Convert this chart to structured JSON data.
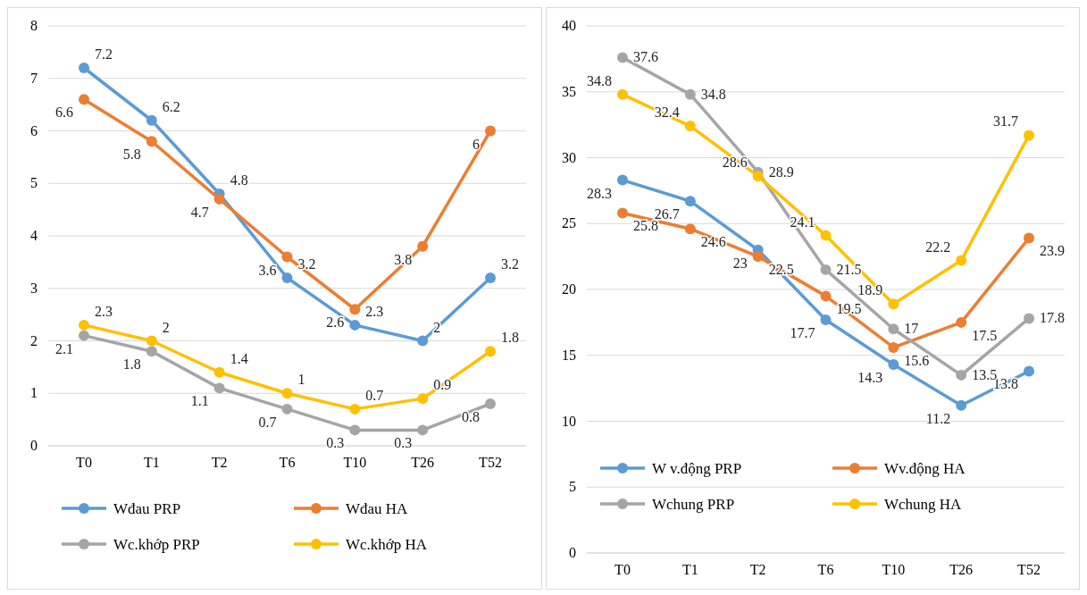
{
  "chart_data": [
    {
      "type": "line",
      "categories": [
        "T0",
        "T1",
        "T2",
        "T6",
        "T10",
        "T26",
        "T52"
      ],
      "ylim": [
        0,
        8
      ],
      "yticks": [
        0,
        1,
        2,
        3,
        4,
        5,
        6,
        7,
        8
      ],
      "grid": "y",
      "legend": "bottom",
      "marker": "circle",
      "data_labels": true,
      "series": [
        {
          "name": "Wđau PRP",
          "color": "#5b9bd5",
          "values": [
            7.2,
            6.2,
            4.8,
            3.2,
            2.3,
            2,
            3.2
          ]
        },
        {
          "name": "Wđau HA",
          "color": "#ed7d31",
          "values": [
            6.6,
            5.8,
            4.7,
            3.6,
            2.6,
            3.8,
            6
          ]
        },
        {
          "name": "Wc.khớp PRP",
          "color": "#a5a5a5",
          "values": [
            2.1,
            1.8,
            1.1,
            0.7,
            0.3,
            0.3,
            0.8
          ]
        },
        {
          "name": "Wc.khớp HA",
          "color": "#ffc000",
          "values": [
            2.3,
            2,
            1.4,
            1,
            0.7,
            0.9,
            1.8
          ]
        }
      ]
    },
    {
      "type": "line",
      "categories": [
        "T0",
        "T1",
        "T2",
        "T6",
        "T10",
        "T26",
        "T52"
      ],
      "ylim": [
        0,
        40
      ],
      "yticks": [
        0,
        5,
        10,
        15,
        20,
        25,
        30,
        35,
        40
      ],
      "grid": "y",
      "legend": "bottom",
      "marker": "circle",
      "data_labels": true,
      "series": [
        {
          "name": "W v.động PRP",
          "color": "#5b9bd5",
          "values": [
            28.3,
            26.7,
            23,
            17.7,
            14.3,
            11.2,
            13.8
          ]
        },
        {
          "name": "Wv.động HA",
          "color": "#ed7d31",
          "values": [
            25.8,
            24.6,
            22.5,
            19.5,
            15.6,
            17.5,
            23.9
          ]
        },
        {
          "name": "Wchung PRP",
          "color": "#a5a5a5",
          "values": [
            37.6,
            34.8,
            28.9,
            21.5,
            17,
            13.5,
            17.8
          ]
        },
        {
          "name": "Wchung HA",
          "color": "#ffc000",
          "values": [
            34.8,
            32.4,
            28.6,
            24.1,
            18.9,
            22.2,
            31.7
          ]
        }
      ]
    }
  ]
}
